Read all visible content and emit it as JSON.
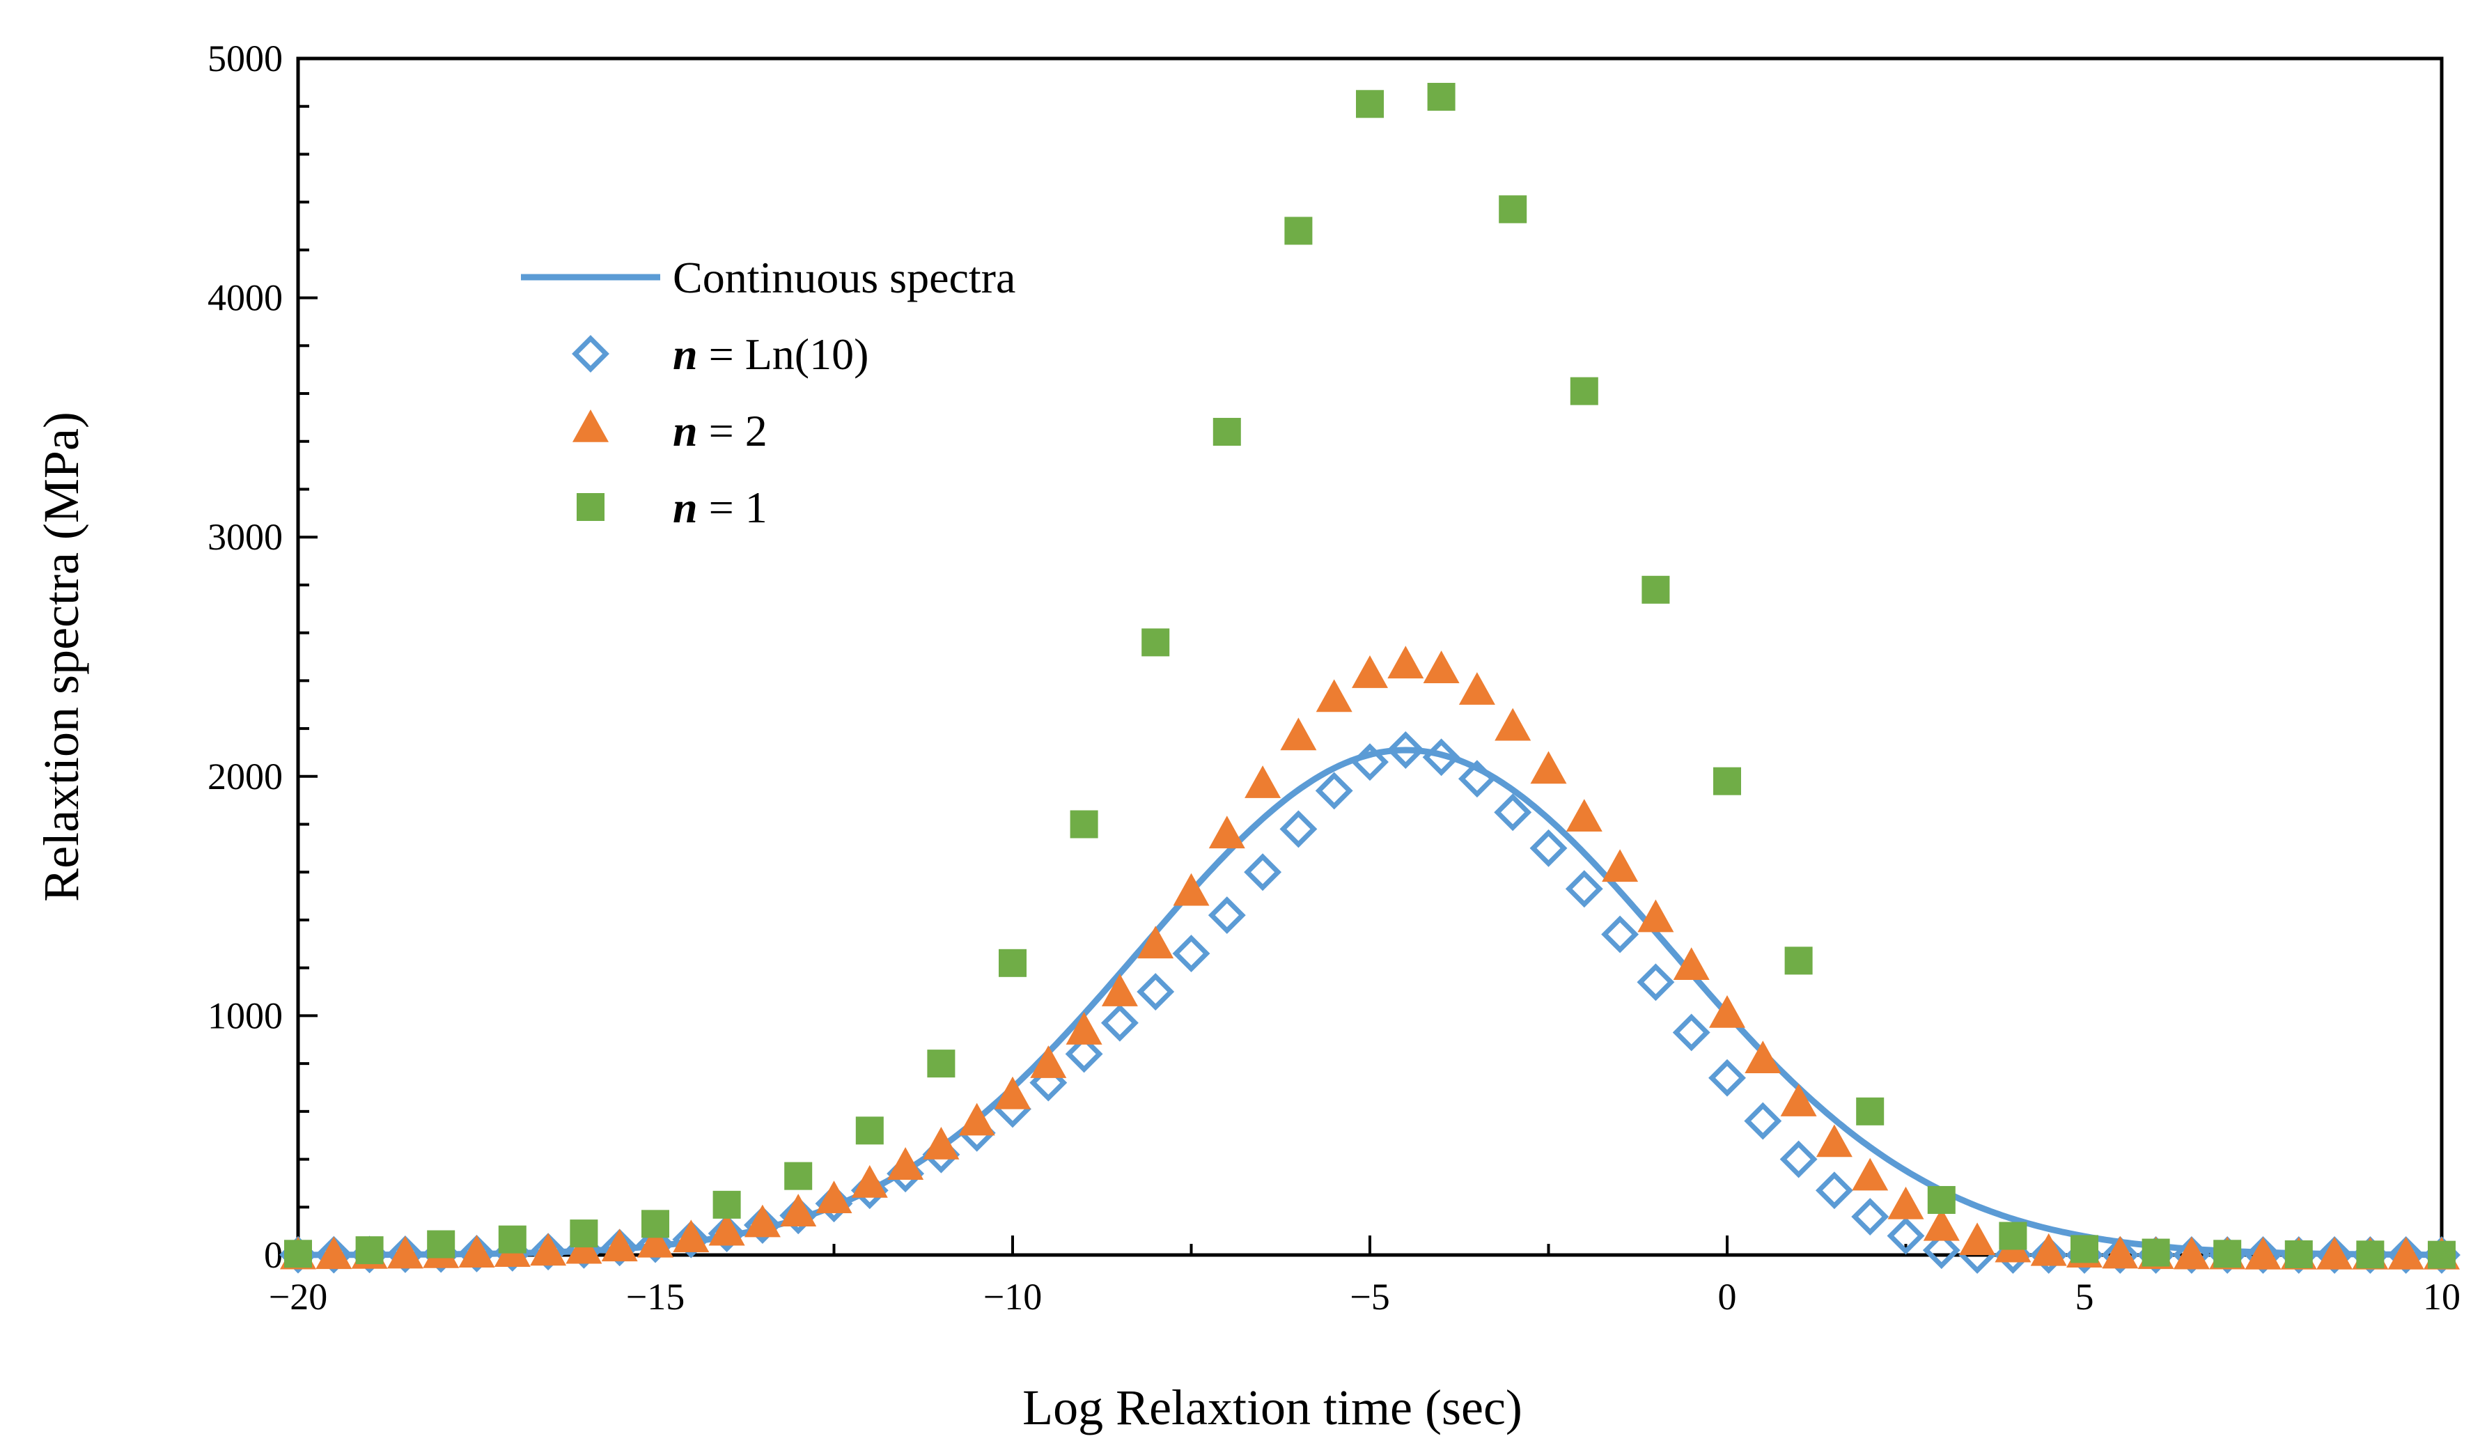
{
  "chart_data": {
    "type": "scatter",
    "title": "",
    "xlabel": "Log Relaxtion time (sec)",
    "ylabel": "Relaxtion spectra (MPa)",
    "xlim": [
      -20,
      10
    ],
    "ylim": [
      0,
      5000
    ],
    "xticks": [
      -20,
      -15,
      -10,
      -5,
      0,
      5,
      10
    ],
    "xtick_labels": [
      "−20",
      "−15",
      "−10",
      "−5",
      "0",
      "5",
      "10"
    ],
    "yticks": [
      0,
      1000,
      2000,
      3000,
      4000,
      5000
    ],
    "ytick_labels": [
      "0",
      "1000",
      "2000",
      "3000",
      "4000",
      "5000"
    ],
    "grid": false,
    "legend_position": "top-left",
    "continuous": {
      "name": "Continuous spectra",
      "style": "line",
      "color": "#5b9bd5",
      "peak_x": -4.5,
      "peak_y": 2110,
      "sigma": 3.7,
      "x_start": -20,
      "x_end": 10
    },
    "series": [
      {
        "name_bold": "n",
        "name_rest": " = Ln(10)",
        "marker": "diamond",
        "color": "#5b9bd5",
        "x": [
          -20,
          -19.5,
          -19,
          -18.5,
          -18,
          -17.5,
          -17,
          -16.5,
          -16,
          -15.5,
          -15,
          -14.5,
          -14,
          -13.5,
          -13,
          -12.5,
          -12,
          -11.5,
          -11,
          -10.5,
          -10,
          -9.5,
          -9,
          -8.5,
          -8,
          -7.5,
          -7,
          -6.5,
          -6,
          -5.5,
          -5,
          -4.5,
          -4,
          -3.5,
          -3,
          -2.5,
          -2,
          -1.5,
          -1,
          -0.5,
          0,
          0.5,
          1,
          1.5,
          2,
          2.5,
          3,
          3.5,
          4,
          4.5,
          5,
          5.5,
          6,
          6.5,
          7,
          7.5,
          8,
          8.5,
          9,
          9.5,
          10
        ],
        "y": [
          1,
          1,
          2,
          3,
          4,
          6,
          9,
          14,
          21,
          31,
          45,
          65,
          90,
          125,
          165,
          215,
          270,
          340,
          420,
          510,
          610,
          720,
          840,
          970,
          1100,
          1260,
          1420,
          1600,
          1780,
          1940,
          2060,
          2110,
          2080,
          1990,
          1850,
          1700,
          1530,
          1340,
          1140,
          930,
          740,
          560,
          400,
          270,
          160,
          80,
          20,
          0,
          0,
          0,
          0,
          0,
          0,
          0,
          0,
          0,
          0,
          0,
          0,
          0,
          0
        ]
      },
      {
        "name_bold": "n",
        "name_rest": " = 2",
        "marker": "triangle",
        "color": "#ed7d31",
        "x": [
          -20,
          -19.5,
          -19,
          -18.5,
          -18,
          -17.5,
          -17,
          -16.5,
          -16,
          -15.5,
          -15,
          -14.5,
          -14,
          -13.5,
          -13,
          -12.5,
          -12,
          -11.5,
          -11,
          -10.5,
          -10,
          -9.5,
          -9,
          -8.5,
          -8,
          -7.5,
          -7,
          -6.5,
          -6,
          -5.5,
          -5,
          -4.5,
          -4,
          -3.5,
          -3,
          -2.5,
          -2,
          -1.5,
          -1,
          -0.5,
          0,
          0.5,
          1,
          1.5,
          2,
          2.5,
          3,
          3.5,
          4,
          4.5,
          5,
          5.5,
          6,
          6.5,
          7,
          7.5,
          8,
          8.5,
          9,
          9.5,
          10
        ],
        "y": [
          1,
          2,
          3,
          4,
          6,
          8,
          11,
          16,
          24,
          34,
          50,
          72,
          100,
          135,
          180,
          235,
          300,
          375,
          460,
          560,
          670,
          800,
          940,
          1100,
          1300,
          1520,
          1760,
          1970,
          2170,
          2330,
          2430,
          2470,
          2450,
          2360,
          2210,
          2030,
          1830,
          1620,
          1410,
          1210,
          1010,
          820,
          640,
          470,
          330,
          210,
          120,
          60,
          30,
          15,
          8,
          4,
          2,
          1,
          1,
          0,
          0,
          0,
          0,
          0,
          0
        ]
      },
      {
        "name_bold": "n",
        "name_rest": " = 1",
        "marker": "square",
        "color": "#70ad47",
        "x": [
          -20,
          -19,
          -18,
          -17,
          -16,
          -15,
          -14,
          -13,
          -12,
          -11,
          -10,
          -9,
          -8,
          -7,
          -6,
          -5,
          -4,
          -3,
          -2,
          -1,
          0,
          1,
          2,
          3,
          4,
          5,
          6,
          7,
          8,
          9,
          10
        ],
        "y": [
          5,
          20,
          45,
          65,
          90,
          130,
          210,
          330,
          520,
          800,
          1220,
          1800,
          2560,
          3440,
          4280,
          4810,
          4840,
          4370,
          3610,
          2780,
          1980,
          1230,
          600,
          230,
          80,
          25,
          10,
          5,
          3,
          2,
          1
        ]
      }
    ]
  }
}
